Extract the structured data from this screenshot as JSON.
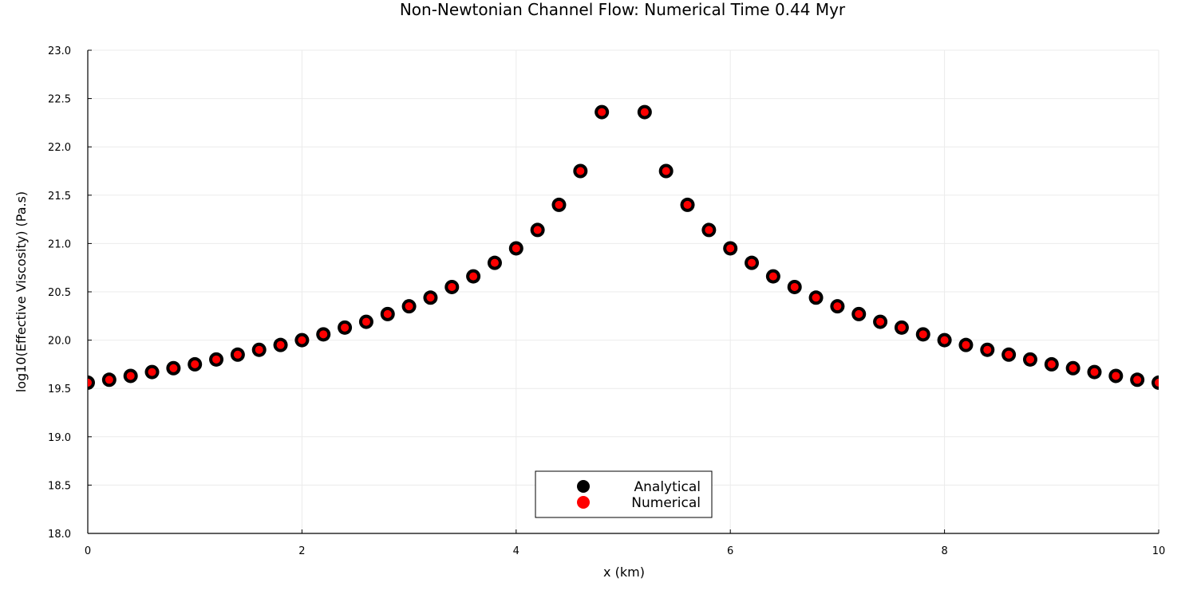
{
  "chart_data": {
    "type": "scatter",
    "title": "Non-Newtonian Channel Flow: Numerical Time 0.44 Myr",
    "xlabel": "x (km)",
    "ylabel": "log10(Effective Viscosity) (Pa.s)",
    "xlim": [
      0,
      10
    ],
    "ylim": [
      18.0,
      23.0
    ],
    "xticks": [
      "0",
      "2",
      "4",
      "6",
      "8",
      "10"
    ],
    "yticks": [
      "18.0",
      "18.5",
      "19.0",
      "19.5",
      "20.0",
      "20.5",
      "21.0",
      "21.5",
      "22.0",
      "22.5",
      "23.0"
    ],
    "grid": true,
    "legend_position": "bottom-center",
    "x": [
      0.0,
      0.2,
      0.4,
      0.6,
      0.8,
      1.0,
      1.2,
      1.4,
      1.6,
      1.8,
      2.0,
      2.2,
      2.4,
      2.6,
      2.8,
      3.0,
      3.2,
      3.4,
      3.6,
      3.8,
      4.0,
      4.2,
      4.4,
      4.6,
      4.8,
      5.2,
      5.4,
      5.6,
      5.8,
      6.0,
      6.2,
      6.4,
      6.6,
      6.8,
      7.0,
      7.2,
      7.4,
      7.6,
      7.8,
      8.0,
      8.2,
      8.4,
      8.6,
      8.8,
      9.0,
      9.2,
      9.4,
      9.6,
      9.8,
      10.0
    ],
    "series": [
      {
        "name": "Analytical",
        "color": "#000000",
        "values": [
          19.56,
          19.59,
          19.63,
          19.67,
          19.71,
          19.75,
          19.8,
          19.85,
          19.9,
          19.95,
          20.0,
          20.06,
          20.13,
          20.19,
          20.27,
          20.35,
          20.44,
          20.55,
          20.66,
          20.8,
          20.95,
          21.14,
          21.4,
          21.75,
          22.36,
          22.36,
          21.75,
          21.4,
          21.14,
          20.95,
          20.8,
          20.66,
          20.55,
          20.44,
          20.35,
          20.27,
          20.19,
          20.13,
          20.06,
          20.0,
          19.95,
          19.9,
          19.85,
          19.8,
          19.75,
          19.71,
          19.67,
          19.63,
          19.59,
          19.56
        ]
      },
      {
        "name": "Numerical",
        "color": "#ff0000",
        "values": [
          19.56,
          19.59,
          19.63,
          19.67,
          19.71,
          19.75,
          19.8,
          19.85,
          19.9,
          19.95,
          20.0,
          20.06,
          20.13,
          20.19,
          20.27,
          20.35,
          20.44,
          20.55,
          20.66,
          20.8,
          20.95,
          21.14,
          21.4,
          21.75,
          22.36,
          22.36,
          21.75,
          21.4,
          21.14,
          20.95,
          20.8,
          20.66,
          20.55,
          20.44,
          20.35,
          20.27,
          20.19,
          20.13,
          20.06,
          20.0,
          19.95,
          19.9,
          19.85,
          19.8,
          19.75,
          19.71,
          19.67,
          19.63,
          19.59,
          19.56
        ]
      }
    ]
  }
}
